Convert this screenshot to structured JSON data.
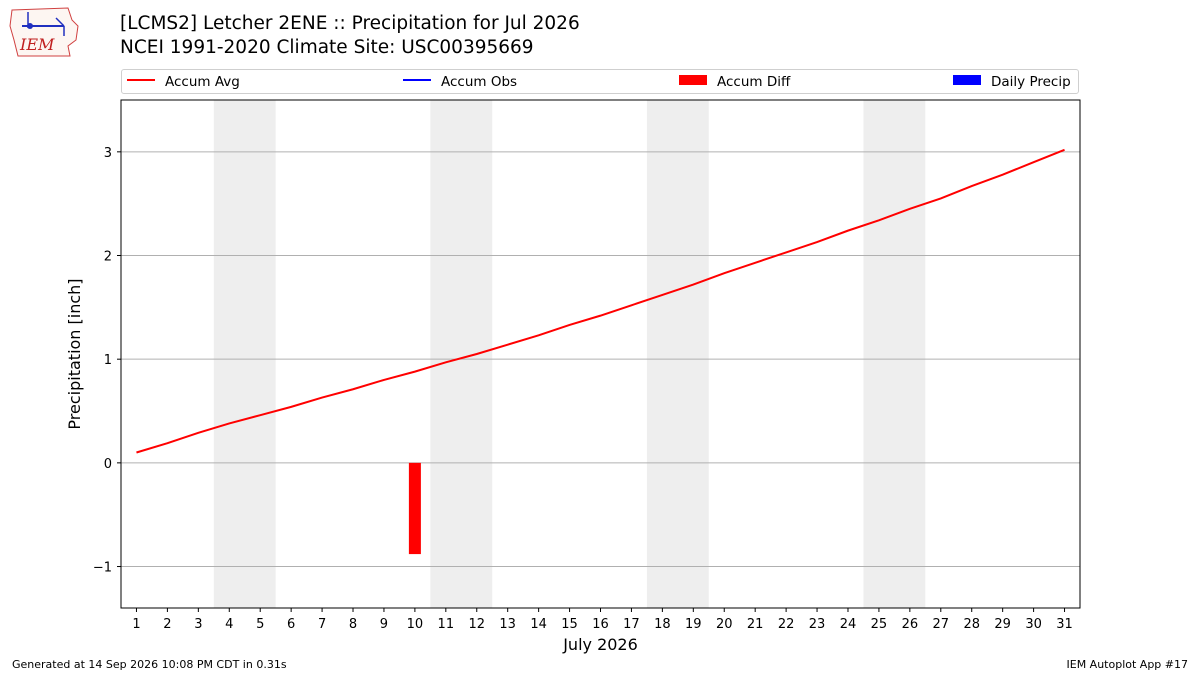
{
  "header": {
    "title_line1": "[LCMS2] Letcher 2ENE :: Precipitation for Jul 2026",
    "title_line2": "NCEI 1991-2020 Climate Site: USC00395669",
    "logo_text": "IEM"
  },
  "legend": [
    {
      "label": "Accum Avg",
      "kind": "line",
      "color": "#ff0000"
    },
    {
      "label": "Accum Obs",
      "kind": "line",
      "color": "#0000ff"
    },
    {
      "label": "Accum Diff",
      "kind": "box",
      "color": "#ff0000"
    },
    {
      "label": "Daily Precip",
      "kind": "box",
      "color": "#0000ff"
    }
  ],
  "footer": {
    "left": "Generated at 14 Sep 2026 10:08 PM CDT in 0.31s",
    "right": "IEM Autoplot App #17"
  },
  "chart_data": {
    "type": "line",
    "xlabel": "July 2026",
    "ylabel": "Precipitation [inch]",
    "xlim": [
      0.5,
      31.5
    ],
    "ylim": [
      -1.4,
      3.5
    ],
    "yticks": [
      -1,
      0,
      1,
      2,
      3
    ],
    "ytick_labels": [
      "−1",
      "0",
      "1",
      "2",
      "3"
    ],
    "x": [
      1,
      2,
      3,
      4,
      5,
      6,
      7,
      8,
      9,
      10,
      11,
      12,
      13,
      14,
      15,
      16,
      17,
      18,
      19,
      20,
      21,
      22,
      23,
      24,
      25,
      26,
      27,
      28,
      29,
      30,
      31
    ],
    "grid": "horizontal",
    "weekend_shading": [
      [
        3.5,
        5.5
      ],
      [
        10.5,
        12.5
      ],
      [
        17.5,
        19.5
      ],
      [
        24.5,
        26.5
      ]
    ],
    "shade_color": "#eeeeee",
    "series": [
      {
        "name": "Accum Avg",
        "type": "line",
        "color": "#ff0000",
        "values": [
          0.1,
          0.19,
          0.29,
          0.38,
          0.46,
          0.54,
          0.63,
          0.71,
          0.8,
          0.88,
          0.97,
          1.05,
          1.14,
          1.23,
          1.33,
          1.42,
          1.52,
          1.62,
          1.72,
          1.83,
          1.93,
          2.03,
          2.13,
          2.24,
          2.34,
          2.45,
          2.55,
          2.67,
          2.78,
          2.9,
          3.02
        ]
      },
      {
        "name": "Accum Diff",
        "type": "bar",
        "color": "#ff0000",
        "x": [
          10
        ],
        "values": [
          -0.88
        ]
      }
    ]
  }
}
